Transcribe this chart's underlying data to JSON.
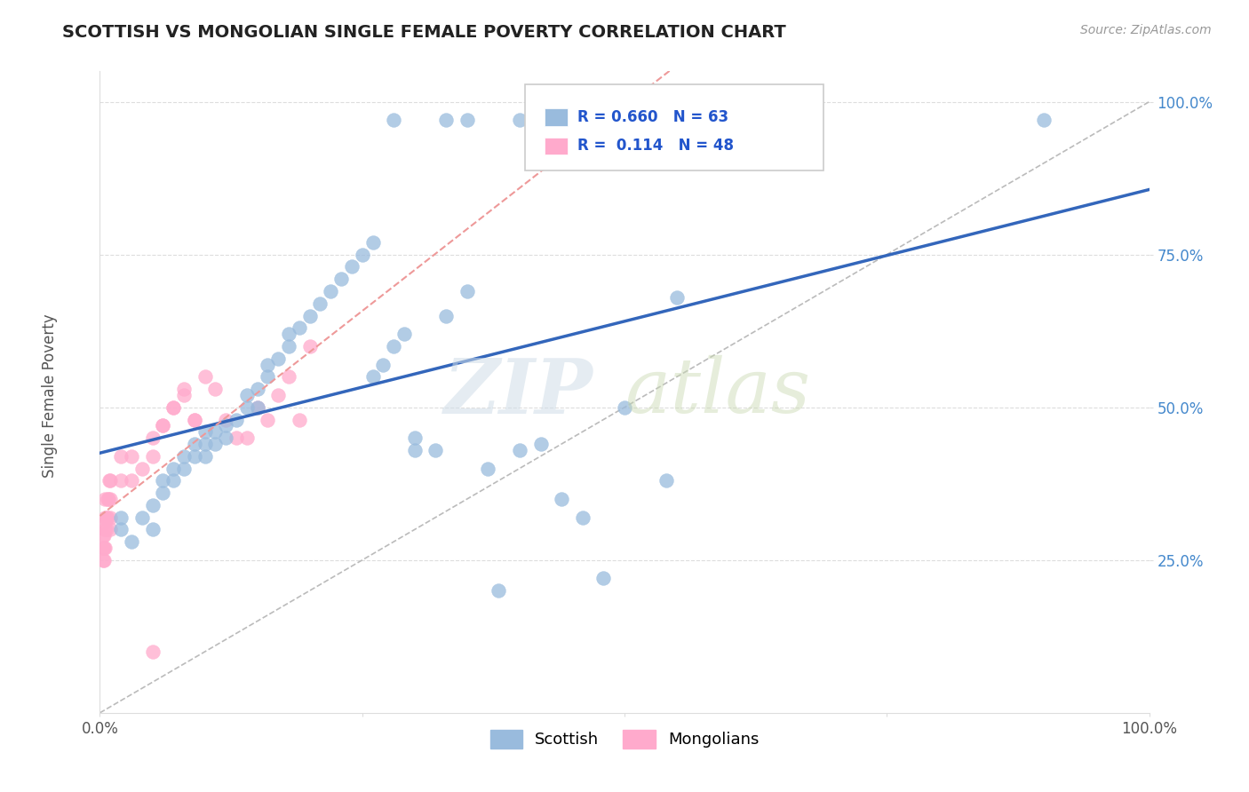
{
  "title": "SCOTTISH VS MONGOLIAN SINGLE FEMALE POVERTY CORRELATION CHART",
  "source": "Source: ZipAtlas.com",
  "ylabel": "Single Female Poverty",
  "xlim": [
    0.0,
    1.0
  ],
  "ylim": [
    0.0,
    1.05
  ],
  "xtick_labels": [
    "0.0%",
    "",
    "",
    "",
    "100.0%"
  ],
  "xtick_vals": [
    0.0,
    0.25,
    0.5,
    0.75,
    1.0
  ],
  "ytick_labels": [
    "25.0%",
    "50.0%",
    "75.0%",
    "100.0%"
  ],
  "ytick_vals": [
    0.25,
    0.5,
    0.75,
    1.0
  ],
  "scottish_R": 0.66,
  "scottish_N": 63,
  "mongolian_R": 0.114,
  "mongolian_N": 48,
  "scottish_color": "#99BBDD",
  "mongolian_color": "#FFAACC",
  "legend_label_scottish": "Scottish",
  "legend_label_mongolian": "Mongolians",
  "watermark_zip": "ZIP",
  "watermark_atlas": "atlas",
  "line_color_scottish": "#3366BB",
  "line_color_mongolian": "#EE9999",
  "line_color_diagonal": "#BBBBBB",
  "scottish_x": [
    0.02,
    0.02,
    0.03,
    0.04,
    0.05,
    0.05,
    0.06,
    0.06,
    0.07,
    0.07,
    0.08,
    0.08,
    0.09,
    0.09,
    0.1,
    0.1,
    0.1,
    0.11,
    0.11,
    0.12,
    0.12,
    0.13,
    0.14,
    0.14,
    0.15,
    0.15,
    0.16,
    0.16,
    0.17,
    0.18,
    0.18,
    0.19,
    0.2,
    0.21,
    0.22,
    0.23,
    0.24,
    0.25,
    0.26,
    0.26,
    0.27,
    0.28,
    0.29,
    0.3,
    0.3,
    0.32,
    0.33,
    0.35,
    0.37,
    0.38,
    0.4,
    0.42,
    0.44,
    0.46,
    0.48,
    0.5,
    0.54,
    0.55,
    0.28,
    0.33,
    0.35,
    0.4,
    0.9
  ],
  "scottish_y": [
    0.3,
    0.32,
    0.28,
    0.32,
    0.3,
    0.34,
    0.36,
    0.38,
    0.38,
    0.4,
    0.4,
    0.42,
    0.42,
    0.44,
    0.42,
    0.44,
    0.46,
    0.44,
    0.46,
    0.45,
    0.47,
    0.48,
    0.5,
    0.52,
    0.5,
    0.53,
    0.55,
    0.57,
    0.58,
    0.6,
    0.62,
    0.63,
    0.65,
    0.67,
    0.69,
    0.71,
    0.73,
    0.75,
    0.77,
    0.55,
    0.57,
    0.6,
    0.62,
    0.43,
    0.45,
    0.43,
    0.65,
    0.69,
    0.4,
    0.2,
    0.43,
    0.44,
    0.35,
    0.32,
    0.22,
    0.5,
    0.38,
    0.68,
    0.97,
    0.97,
    0.97,
    0.97,
    0.97
  ],
  "mongolian_x": [
    0.003,
    0.003,
    0.003,
    0.004,
    0.004,
    0.004,
    0.004,
    0.005,
    0.005,
    0.005,
    0.005,
    0.006,
    0.006,
    0.007,
    0.007,
    0.008,
    0.009,
    0.01,
    0.01,
    0.01,
    0.01,
    0.02,
    0.02,
    0.03,
    0.03,
    0.04,
    0.05,
    0.05,
    0.06,
    0.07,
    0.08,
    0.09,
    0.1,
    0.11,
    0.12,
    0.13,
    0.14,
    0.15,
    0.16,
    0.17,
    0.18,
    0.19,
    0.2,
    0.05,
    0.06,
    0.07,
    0.08,
    0.09
  ],
  "mongolian_y": [
    0.25,
    0.27,
    0.29,
    0.25,
    0.27,
    0.29,
    0.31,
    0.27,
    0.3,
    0.32,
    0.35,
    0.3,
    0.32,
    0.32,
    0.35,
    0.35,
    0.38,
    0.3,
    0.32,
    0.35,
    0.38,
    0.38,
    0.42,
    0.38,
    0.42,
    0.4,
    0.42,
    0.45,
    0.47,
    0.5,
    0.52,
    0.48,
    0.55,
    0.53,
    0.48,
    0.45,
    0.45,
    0.5,
    0.48,
    0.52,
    0.55,
    0.48,
    0.6,
    0.1,
    0.47,
    0.5,
    0.53,
    0.48
  ]
}
